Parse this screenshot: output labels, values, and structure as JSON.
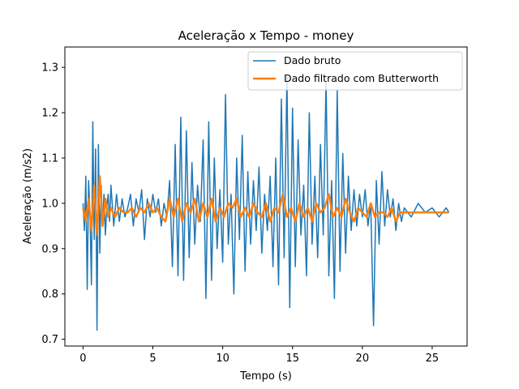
{
  "chart_data": {
    "type": "line",
    "title": "Aceleração x Tempo - money",
    "xlabel": "Tempo (s)",
    "ylabel": "Aceleração (m/s2)",
    "xlim": [
      -1.3,
      27.5
    ],
    "ylim": [
      0.685,
      1.345
    ],
    "xticks": [
      0,
      5,
      10,
      15,
      20,
      25
    ],
    "yticks": [
      0.7,
      0.8,
      0.9,
      1.0,
      1.1,
      1.2,
      1.3
    ],
    "xtick_labels": [
      "0",
      "5",
      "10",
      "15",
      "20",
      "25"
    ],
    "ytick_labels": [
      "0.7",
      "0.8",
      "0.9",
      "1.0",
      "1.1",
      "1.2",
      "1.3"
    ],
    "grid": false,
    "legend_position": "top-right",
    "series": [
      {
        "name": "Dado bruto",
        "color": "#1f77b4",
        "x": [
          0.0,
          0.1,
          0.2,
          0.3,
          0.4,
          0.5,
          0.6,
          0.7,
          0.8,
          0.9,
          1.0,
          1.1,
          1.2,
          1.3,
          1.4,
          1.5,
          1.6,
          1.7,
          1.8,
          1.9,
          2.0,
          2.2,
          2.4,
          2.6,
          2.8,
          3.0,
          3.2,
          3.4,
          3.6,
          3.8,
          4.0,
          4.2,
          4.4,
          4.6,
          4.8,
          5.0,
          5.2,
          5.4,
          5.6,
          5.8,
          6.0,
          6.2,
          6.4,
          6.6,
          6.8,
          7.0,
          7.2,
          7.4,
          7.6,
          7.8,
          8.0,
          8.2,
          8.4,
          8.6,
          8.8,
          9.0,
          9.2,
          9.4,
          9.6,
          9.8,
          10.0,
          10.2,
          10.4,
          10.6,
          10.8,
          11.0,
          11.2,
          11.4,
          11.6,
          11.8,
          12.0,
          12.2,
          12.4,
          12.6,
          12.8,
          13.0,
          13.2,
          13.4,
          13.6,
          13.8,
          14.0,
          14.2,
          14.4,
          14.6,
          14.8,
          15.0,
          15.2,
          15.4,
          15.6,
          15.8,
          16.0,
          16.2,
          16.4,
          16.6,
          16.8,
          17.0,
          17.2,
          17.4,
          17.6,
          17.8,
          18.0,
          18.2,
          18.4,
          18.6,
          18.8,
          19.0,
          19.2,
          19.4,
          19.6,
          19.8,
          20.0,
          20.2,
          20.4,
          20.6,
          20.8,
          21.0,
          21.2,
          21.4,
          21.6,
          21.8,
          22.0,
          22.2,
          22.4,
          22.6,
          22.8,
          23.0,
          23.5,
          24.0,
          24.5,
          25.0,
          25.5,
          26.0,
          26.2
        ],
        "y": [
          1.0,
          0.94,
          1.06,
          0.81,
          1.05,
          0.97,
          0.82,
          1.18,
          0.92,
          1.12,
          0.72,
          1.13,
          0.89,
          1.04,
          0.95,
          1.02,
          0.93,
          0.99,
          1.02,
          0.96,
          1.04,
          0.95,
          1.02,
          0.96,
          1.01,
          0.97,
          0.99,
          1.02,
          0.95,
          1.01,
          0.98,
          1.03,
          0.92,
          1.01,
          0.97,
          1.02,
          0.98,
          1.01,
          0.95,
          1.0,
          0.97,
          1.05,
          0.86,
          1.13,
          0.84,
          1.19,
          0.83,
          1.16,
          0.88,
          1.09,
          0.91,
          1.04,
          0.96,
          1.14,
          0.79,
          1.18,
          0.83,
          1.1,
          0.9,
          1.03,
          0.87,
          1.24,
          0.91,
          1.02,
          0.8,
          1.1,
          0.92,
          1.15,
          0.85,
          1.07,
          0.91,
          1.05,
          0.94,
          1.08,
          0.89,
          1.02,
          0.94,
          1.06,
          0.86,
          1.1,
          0.82,
          1.23,
          0.88,
          1.28,
          0.77,
          1.21,
          0.86,
          1.14,
          0.93,
          1.04,
          0.84,
          1.2,
          0.91,
          1.06,
          0.88,
          1.13,
          0.93,
          1.27,
          0.84,
          1.05,
          0.79,
          1.25,
          0.85,
          1.11,
          0.89,
          1.06,
          0.94,
          1.03,
          0.95,
          1.02,
          0.97,
          1.03,
          0.95,
          1.0,
          0.73,
          1.05,
          0.91,
          1.07,
          0.95,
          1.03,
          0.97,
          1.01,
          0.94,
          1.0,
          0.96,
          0.99,
          0.97,
          1.0,
          0.98,
          0.99,
          0.97,
          0.99,
          0.98
        ]
      },
      {
        "name": "Dado filtrado com Butterworth",
        "color": "#ff7f0e",
        "x": [
          0.0,
          0.2,
          0.4,
          0.6,
          0.8,
          1.0,
          1.2,
          1.4,
          1.6,
          1.8,
          2.0,
          2.3,
          2.6,
          2.9,
          3.2,
          3.5,
          3.8,
          4.1,
          4.4,
          4.7,
          5.0,
          5.3,
          5.6,
          5.9,
          6.2,
          6.5,
          6.8,
          7.1,
          7.4,
          7.7,
          8.0,
          8.3,
          8.6,
          8.9,
          9.2,
          9.5,
          9.8,
          10.1,
          10.4,
          10.7,
          11.0,
          11.3,
          11.6,
          11.9,
          12.2,
          12.5,
          12.8,
          13.1,
          13.4,
          13.7,
          14.0,
          14.3,
          14.6,
          14.9,
          15.2,
          15.5,
          15.8,
          16.1,
          16.4,
          16.7,
          17.0,
          17.3,
          17.6,
          17.9,
          18.2,
          18.5,
          18.8,
          19.1,
          19.4,
          19.7,
          20.0,
          20.3,
          20.6,
          20.9,
          21.2,
          21.5,
          21.8,
          22.1,
          22.4,
          22.7,
          23.0,
          23.5,
          24.0,
          24.5,
          25.0,
          25.5,
          26.0,
          26.2
        ],
        "y": [
          0.99,
          0.96,
          1.01,
          0.94,
          1.04,
          0.93,
          1.06,
          0.95,
          1.01,
          0.97,
          0.99,
          0.97,
          0.99,
          0.98,
          0.98,
          0.99,
          0.97,
          0.99,
          0.98,
          1.0,
          0.98,
          0.99,
          0.97,
          0.96,
          1.01,
          0.97,
          1.01,
          0.96,
          1.0,
          0.98,
          1.01,
          0.96,
          1.0,
          0.97,
          1.01,
          0.96,
          0.99,
          0.97,
          1.0,
          0.99,
          1.01,
          0.97,
          0.99,
          0.97,
          1.0,
          0.98,
          0.97,
          1.0,
          0.96,
          0.99,
          0.98,
          1.02,
          0.97,
          0.99,
          0.96,
          1.0,
          0.97,
          0.99,
          0.96,
          1.0,
          0.98,
          0.99,
          1.02,
          0.97,
          0.99,
          0.97,
          1.01,
          0.98,
          0.96,
          0.99,
          0.98,
          0.97,
          1.0,
          0.97,
          0.98,
          0.98,
          0.97,
          0.99,
          0.96,
          0.98,
          0.98,
          0.98,
          0.98,
          0.98,
          0.98,
          0.98,
          0.98,
          0.98
        ]
      }
    ]
  }
}
